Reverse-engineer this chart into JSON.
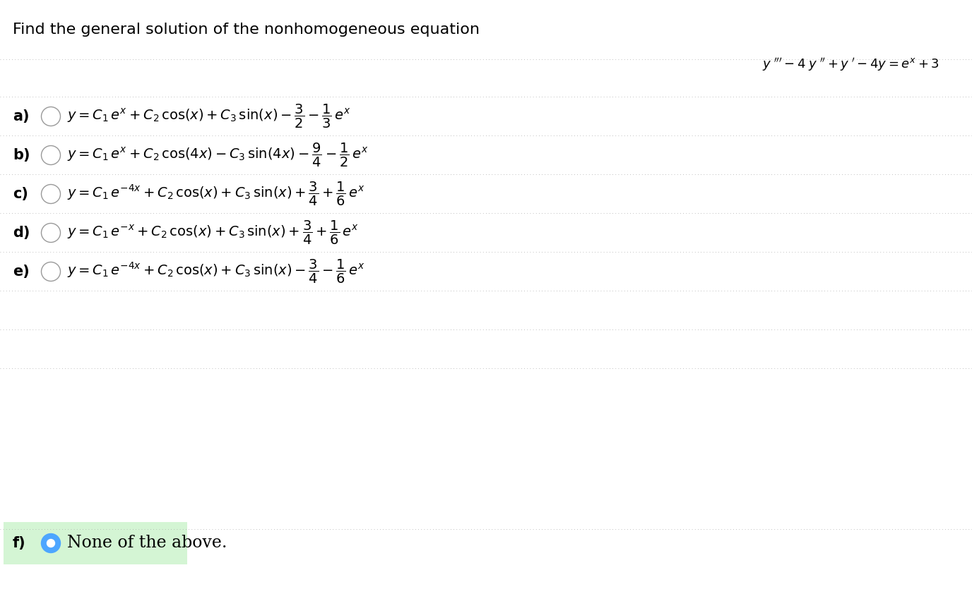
{
  "title": "Find the general solution of the nonhomogeneous equation",
  "background_color": "#ffffff",
  "text_color": "#000000",
  "options": [
    {
      "label": "a)",
      "selected": false,
      "highlight": false
    },
    {
      "label": "b)",
      "selected": false,
      "highlight": false
    },
    {
      "label": "c)",
      "selected": false,
      "highlight": false
    },
    {
      "label": "d)",
      "selected": false,
      "highlight": false
    },
    {
      "label": "e)",
      "selected": false,
      "highlight": false
    },
    {
      "label": "f)",
      "selected": true,
      "highlight": true
    }
  ],
  "highlight_color": "#d4f5d4",
  "radio_outer_color": "#4da6ff",
  "radio_inner_color": "#ffffff"
}
